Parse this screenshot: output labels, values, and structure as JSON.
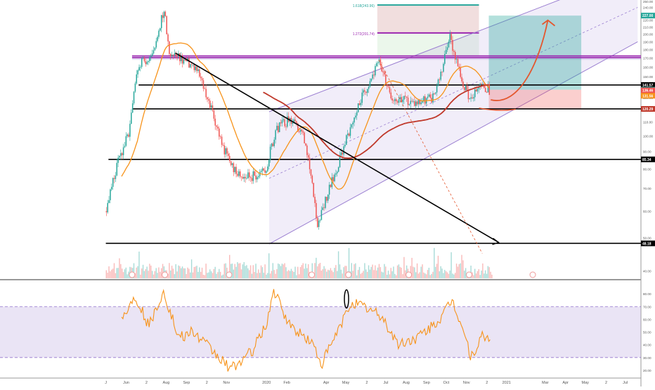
{
  "chart_data": [
    {
      "type": "candlestick",
      "title": "",
      "xlabel": "",
      "ylabel": "",
      "y_scale": "log",
      "ylim": [
        38,
        250
      ],
      "grid": false,
      "colors": {
        "up": "#26a69a",
        "down": "#ef5350",
        "ma": "#f7931a",
        "ma_long": "#c0392b",
        "channel": "#9b7fd1",
        "trendline": "#000000",
        "fib": "#9c27b0",
        "fib_top": "#26a69a",
        "projection": "#e4572e"
      },
      "x_tick_labels": [
        "J",
        "Jun",
        "2",
        "Aug",
        "Sep",
        "2",
        "Nov",
        "2020",
        "Feb",
        "Apr",
        "May",
        "2",
        "Jul",
        "Aug",
        "Sep",
        "Oct",
        "Nov",
        "2",
        "2021",
        "Mar",
        "Apr",
        "May",
        "2",
        "Jul"
      ],
      "y_tick_labels": [
        "40.00",
        "50.00",
        "60.00",
        "70.00",
        "80.00",
        "90.00",
        "100.00",
        "110.00",
        "120.00",
        "130.00",
        "140.00",
        "150.00",
        "160.00",
        "170.00",
        "180.00",
        "190.00",
        "200.00",
        "210.00",
        "220.00",
        "230.00",
        "240.00",
        "250.00"
      ],
      "price_levels": [
        {
          "label": "141.57",
          "value": 141.57,
          "bg": "#000000"
        },
        {
          "label": "137.09",
          "value": 137.09,
          "bg": "#26a69a"
        },
        {
          "label": "136.46",
          "value": 136.46,
          "bg": "#ef5350"
        },
        {
          "label": "131.56",
          "value": 131.56,
          "bg": "#f7931a"
        },
        {
          "label": "120.30",
          "value": 120.3,
          "bg": "#000000"
        },
        {
          "label": "120.29",
          "value": 120.29,
          "bg": "#c0392b"
        },
        {
          "label": "85.34",
          "value": 85.34,
          "bg": "#000000"
        },
        {
          "label": "48.18",
          "value": 48.18,
          "bg": "#000000"
        },
        {
          "label": "227.00",
          "value": 227.0,
          "bg": "#26a69a"
        }
      ],
      "horizontal_lines": [
        48.18,
        85.34,
        120.3,
        141.57,
        170.5,
        172.5
      ],
      "fib_labels": [
        {
          "text": "1.618(243.96)",
          "value": 243.96
        },
        {
          "text": "1.272(201.74)",
          "value": 201.74
        }
      ],
      "close_series": [
        {
          "date": "2019-05-01",
          "close": 60
        },
        {
          "date": "2019-05-20",
          "close": 85
        },
        {
          "date": "2019-06-05",
          "close": 102
        },
        {
          "date": "2019-06-20",
          "close": 165
        },
        {
          "date": "2019-07-10",
          "close": 172
        },
        {
          "date": "2019-07-28",
          "close": 235
        },
        {
          "date": "2019-08-05",
          "close": 178
        },
        {
          "date": "2019-08-25",
          "close": 168
        },
        {
          "date": "2019-09-15",
          "close": 158
        },
        {
          "date": "2019-10-05",
          "close": 125
        },
        {
          "date": "2019-10-25",
          "close": 93
        },
        {
          "date": "2019-11-15",
          "close": 77
        },
        {
          "date": "2019-12-15",
          "close": 76
        },
        {
          "date": "2019-12-31",
          "close": 80
        },
        {
          "date": "2020-01-15",
          "close": 105
        },
        {
          "date": "2020-02-05",
          "close": 112
        },
        {
          "date": "2020-02-25",
          "close": 100
        },
        {
          "date": "2020-03-18",
          "close": 55
        },
        {
          "date": "2020-04-15",
          "close": 78
        },
        {
          "date": "2020-05-10",
          "close": 110
        },
        {
          "date": "2020-06-01",
          "close": 140
        },
        {
          "date": "2020-06-20",
          "close": 165
        },
        {
          "date": "2020-07-10",
          "close": 130
        },
        {
          "date": "2020-08-10",
          "close": 125
        },
        {
          "date": "2020-09-10",
          "close": 130
        },
        {
          "date": "2020-09-25",
          "close": 160
        },
        {
          "date": "2020-10-05",
          "close": 198
        },
        {
          "date": "2020-10-20",
          "close": 155
        },
        {
          "date": "2020-11-05",
          "close": 125
        },
        {
          "date": "2020-11-20",
          "close": 140
        },
        {
          "date": "2020-12-05",
          "close": 137
        }
      ],
      "projection": [
        {
          "date": "2020-12-08",
          "close": 128
        },
        {
          "date": "2021-01-20",
          "close": 122
        },
        {
          "date": "2021-02-20",
          "close": 145
        },
        {
          "date": "2021-03-05",
          "close": 220
        }
      ],
      "rsi": {
        "ylim": [
          15,
          90
        ],
        "y_tick_labels": [
          "80.00",
          "70.00",
          "60.00",
          "50.00",
          "40.00",
          "30.00",
          "20.00"
        ],
        "band": [
          30,
          70
        ],
        "series": [
          {
            "date": "2019-05-25",
            "value": 60
          },
          {
            "date": "2019-06-15",
            "value": 78
          },
          {
            "date": "2019-07-05",
            "value": 55
          },
          {
            "date": "2019-07-28",
            "value": 82
          },
          {
            "date": "2019-08-20",
            "value": 45
          },
          {
            "date": "2019-09-10",
            "value": 50
          },
          {
            "date": "2019-10-01",
            "value": 40
          },
          {
            "date": "2019-10-20",
            "value": 30
          },
          {
            "date": "2019-11-08",
            "value": 21
          },
          {
            "date": "2019-12-10",
            "value": 35
          },
          {
            "date": "2019-12-31",
            "value": 55
          },
          {
            "date": "2020-01-12",
            "value": 82
          },
          {
            "date": "2020-02-05",
            "value": 55
          },
          {
            "date": "2020-03-10",
            "value": 42
          },
          {
            "date": "2020-03-25",
            "value": 25
          },
          {
            "date": "2020-04-20",
            "value": 52
          },
          {
            "date": "2020-05-10",
            "value": 74
          },
          {
            "date": "2020-06-05",
            "value": 68
          },
          {
            "date": "2020-06-25",
            "value": 62
          },
          {
            "date": "2020-07-20",
            "value": 40
          },
          {
            "date": "2020-08-15",
            "value": 45
          },
          {
            "date": "2020-09-05",
            "value": 52
          },
          {
            "date": "2020-09-25",
            "value": 62
          },
          {
            "date": "2020-10-10",
            "value": 75
          },
          {
            "date": "2020-10-25",
            "value": 55
          },
          {
            "date": "2020-11-08",
            "value": 30
          },
          {
            "date": "2020-11-25",
            "value": 46
          },
          {
            "date": "2020-12-08",
            "value": 44
          }
        ]
      }
    }
  ]
}
